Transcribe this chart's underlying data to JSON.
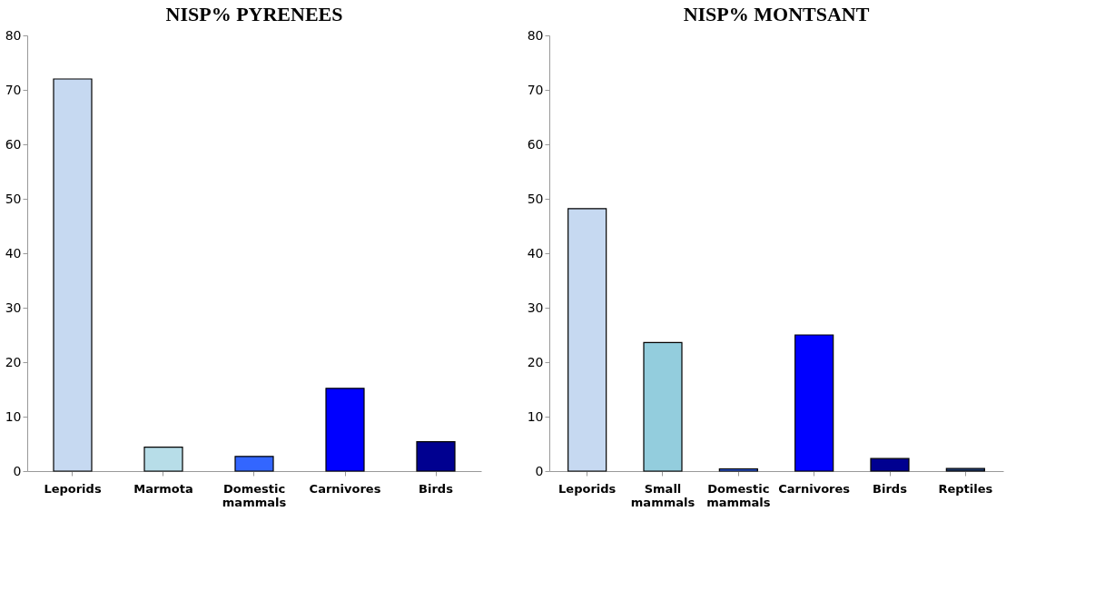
{
  "chart_data": [
    {
      "type": "bar",
      "title": "NISP% PYRENEES",
      "categories": [
        "Leporids",
        "Marmota",
        "Domestic mammals",
        "Carnivores",
        "Birds"
      ],
      "values": [
        72,
        4.4,
        2.7,
        15.2,
        5.4
      ],
      "colors": [
        "#c6d9f1",
        "#b7dde8",
        "#3366ff",
        "#0000ff",
        "#000090"
      ],
      "ylim": [
        0,
        80
      ],
      "yticks": [
        0,
        10,
        20,
        30,
        40,
        50,
        60,
        70,
        80
      ],
      "grid": false,
      "legend": false
    },
    {
      "type": "bar",
      "title": "NISP% MONTSANT",
      "categories": [
        "Leporids",
        "Small mammals",
        "Domestic mammals",
        "Carnivores",
        "Birds",
        "Reptiles"
      ],
      "values": [
        48.2,
        23.6,
        0.4,
        25.0,
        2.3,
        0.5
      ],
      "colors": [
        "#c6d9f1",
        "#93cddd",
        "#3366ff",
        "#0000ff",
        "#000090",
        "#1f3864"
      ],
      "ylim": [
        0,
        80
      ],
      "yticks": [
        0,
        10,
        20,
        30,
        40,
        50,
        60,
        70,
        80
      ],
      "grid": false,
      "legend": false
    }
  ]
}
